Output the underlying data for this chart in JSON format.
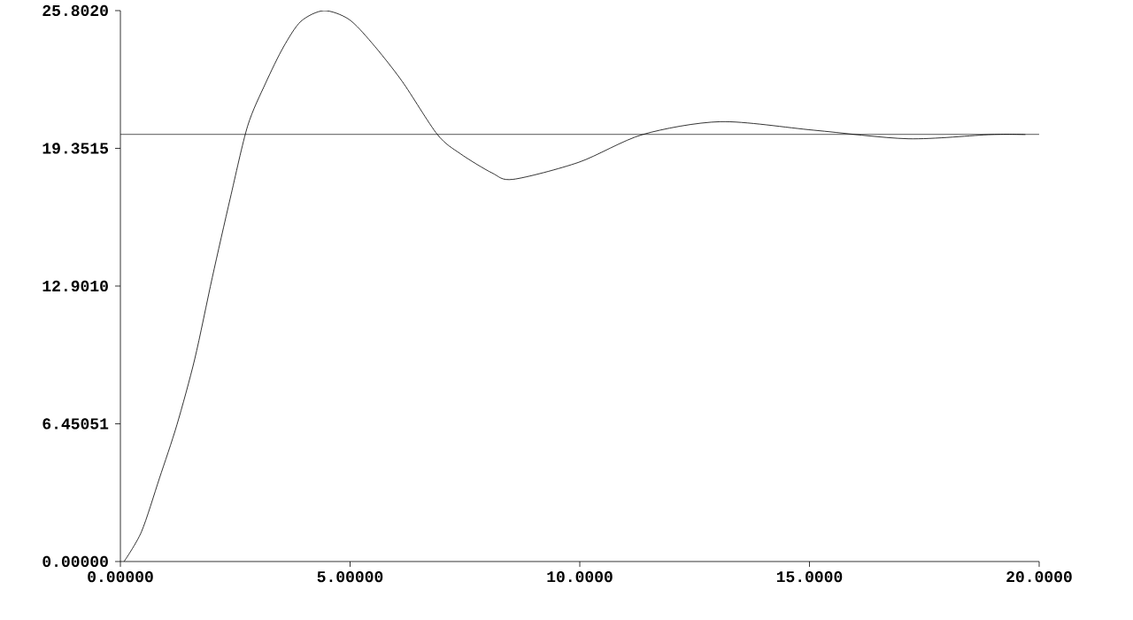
{
  "chart_data": {
    "type": "line",
    "x": [
      0.08,
      0.46,
      0.85,
      1.23,
      1.62,
      2.0,
      2.39,
      2.77,
      3.16,
      3.55,
      3.93,
      4.43,
      4.97,
      5.47,
      6.13,
      6.9,
      7.4,
      8.09,
      8.55,
      9.98,
      11.37,
      13.06,
      15.1,
      17.15,
      18.96,
      19.7
    ],
    "series": [
      {
        "color": "#000000",
        "values": [
          0.0,
          1.4,
          3.9,
          6.4,
          9.5,
          13.3,
          17.0,
          20.4,
          22.4,
          24.1,
          25.3,
          25.8,
          25.4,
          24.3,
          22.5,
          20.0,
          19.1,
          18.2,
          17.9,
          18.7,
          20.0,
          20.6,
          20.2,
          19.8,
          20.0,
          20.0
        ]
      }
    ],
    "xlim": [
      0,
      20
    ],
    "ylim": [
      0,
      25.802
    ],
    "xticks": [
      {
        "value": 0,
        "label": "0.00000"
      },
      {
        "value": 5,
        "label": "5.00000"
      },
      {
        "value": 10,
        "label": "10.0000"
      },
      {
        "value": 15,
        "label": "15.0000"
      },
      {
        "value": 20,
        "label": "20.0000"
      }
    ],
    "yticks": [
      {
        "value": 0,
        "label": "0.00000"
      },
      {
        "value": 6.45051,
        "label": "6.45051"
      },
      {
        "value": 12.901,
        "label": "12.9010"
      },
      {
        "value": 19.3515,
        "label": "19.3515"
      },
      {
        "value": 25.802,
        "label": "25.8020"
      }
    ],
    "ref_lines": [
      {
        "axis": "y",
        "value": 20,
        "color": "#000000"
      }
    ],
    "marker": "none",
    "line_style": "solid"
  }
}
